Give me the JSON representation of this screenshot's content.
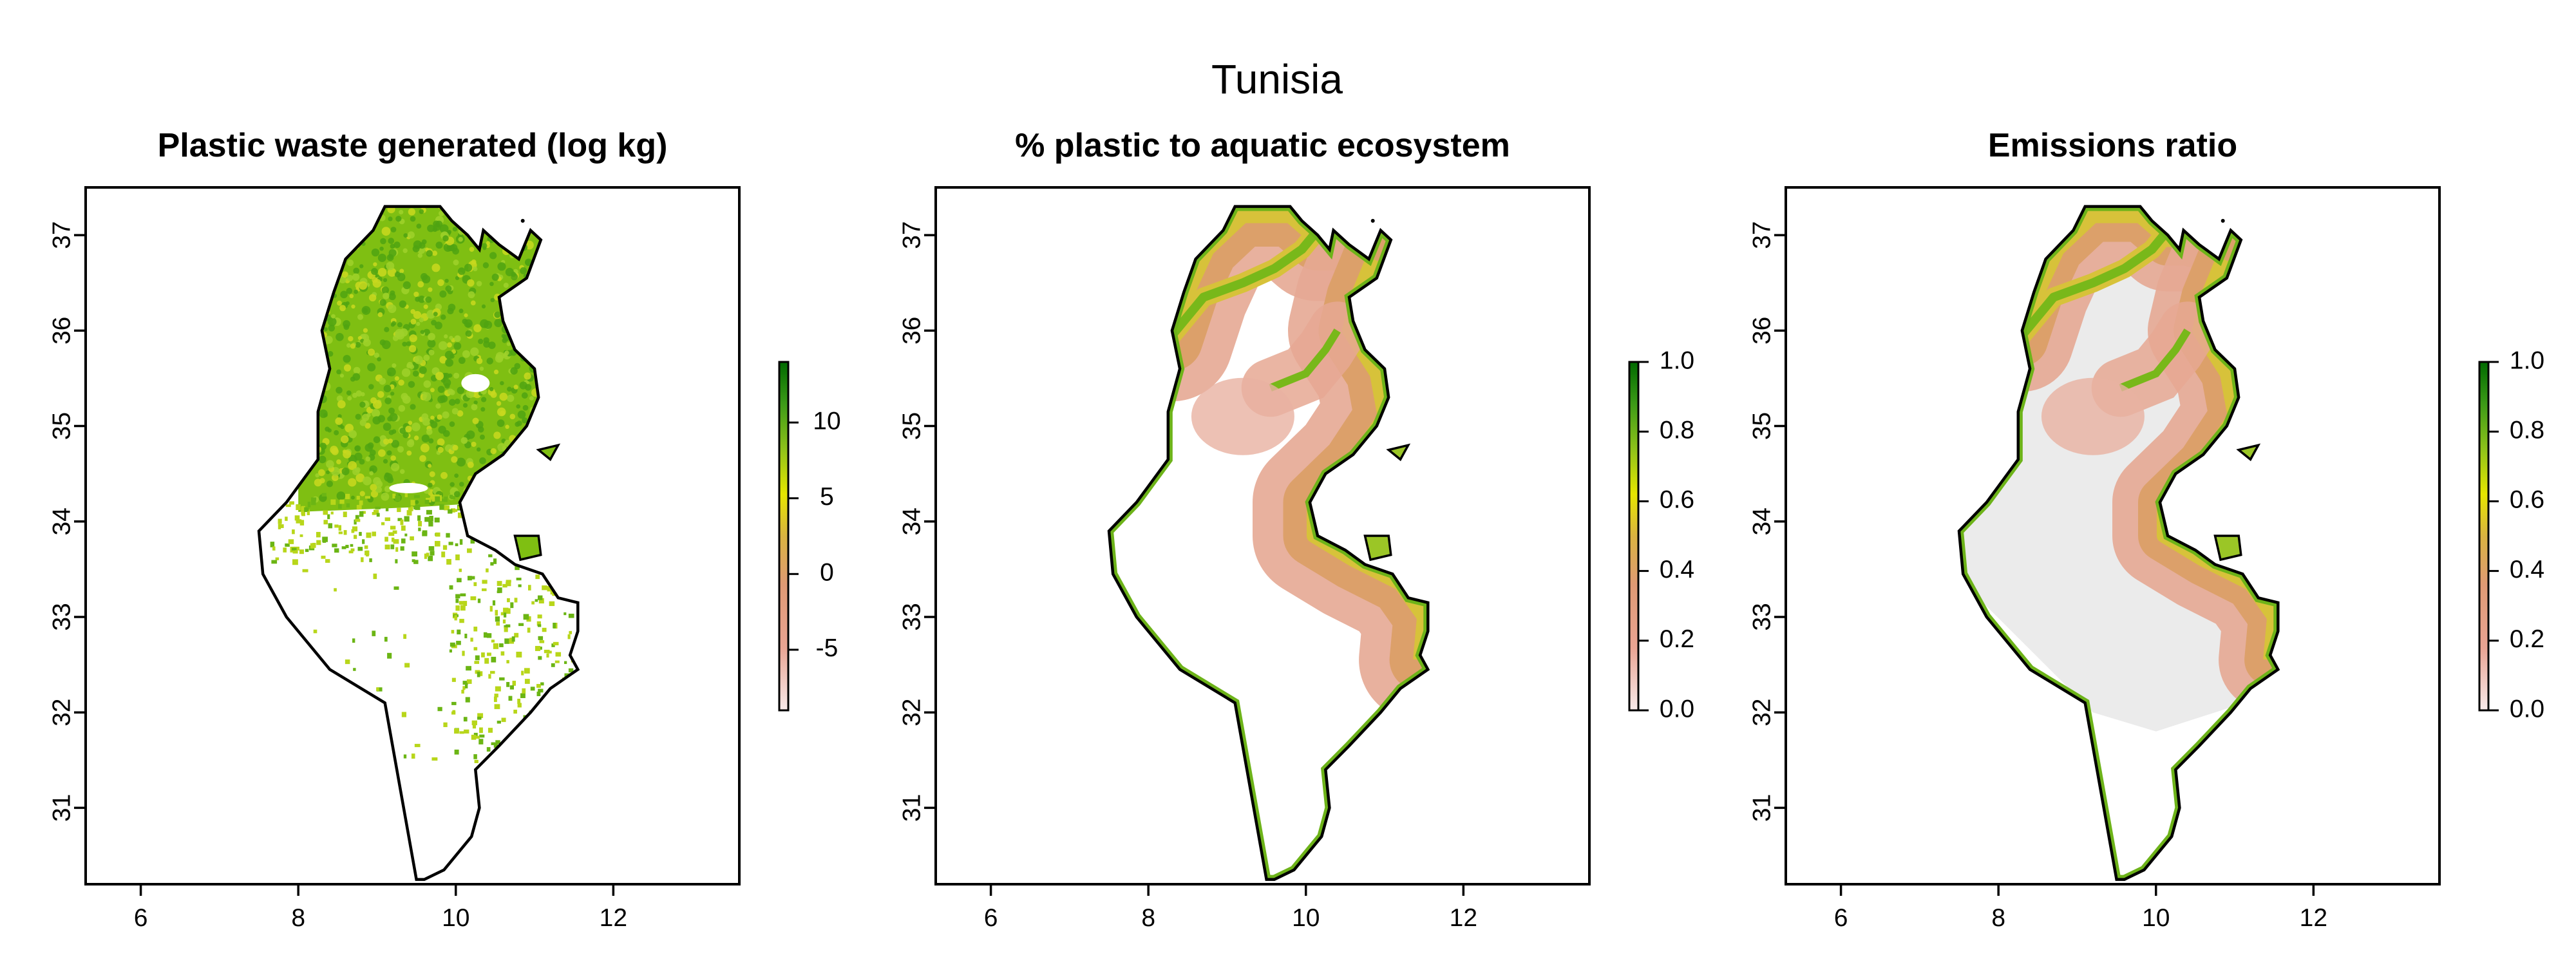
{
  "figure": {
    "title": "Tunisia"
  },
  "axes": {
    "x_ticks": [
      "6",
      "8",
      "10",
      "12"
    ],
    "y_ticks": [
      "31",
      "32",
      "33",
      "34",
      "35",
      "36",
      "37"
    ],
    "xlim": [
      5.3,
      13.6
    ],
    "ylim": [
      30.2,
      37.5
    ]
  },
  "panels": [
    {
      "id": "plastic",
      "title": "Plastic waste generated (log kg)",
      "legend": {
        "ticks": [
          "10",
          "5",
          "0",
          "-5"
        ],
        "tick_values": [
          10,
          5,
          0,
          -5
        ],
        "range": [
          -9,
          14
        ]
      }
    },
    {
      "id": "aquatic",
      "title": "% plastic to aquatic ecosystem",
      "legend": {
        "ticks": [
          "1.0",
          "0.8",
          "0.6",
          "0.4",
          "0.2",
          "0.0"
        ],
        "tick_values": [
          1.0,
          0.8,
          0.6,
          0.4,
          0.2,
          0.0
        ],
        "range": [
          0,
          1
        ]
      }
    },
    {
      "id": "emissions",
      "title": "Emissions ratio",
      "legend": {
        "ticks": [
          "1.0",
          "0.8",
          "0.6",
          "0.4",
          "0.2",
          "0.0"
        ],
        "tick_values": [
          1.0,
          0.8,
          0.6,
          0.4,
          0.2,
          0.0
        ],
        "range": [
          0,
          1
        ]
      }
    }
  ],
  "colors": {
    "ramp": [
      "#f8eaea",
      "#e9a493",
      "#df9a74",
      "#d9b341",
      "#e6e600",
      "#8ec21a",
      "#3c9a17",
      "#006a00"
    ],
    "outline": "#000000",
    "nodata_grey": "#ebebeb"
  }
}
